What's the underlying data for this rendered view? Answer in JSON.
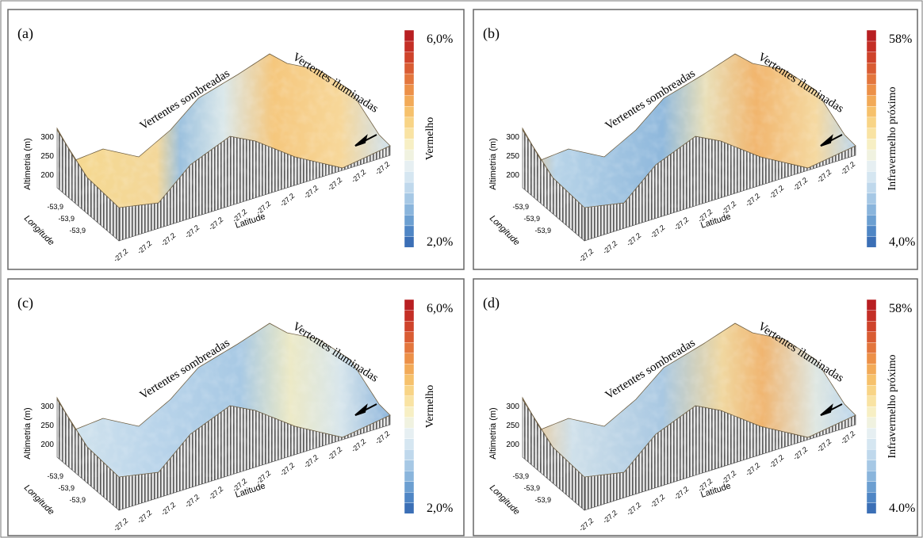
{
  "panels": [
    {
      "label": "(a)",
      "annotations": [
        "Vertentes sombreadas",
        "Vertentes iluminadas"
      ],
      "y_axis_label": "Altimetria (m)",
      "y_ticks": [
        "300",
        "250",
        "200"
      ],
      "longitude_label": "Longitude",
      "longitude_ticks": [
        "-53,9",
        "-53,9",
        "-53,9"
      ],
      "latitude_label": "Latitude",
      "latitude_ticks": [
        "-27,2",
        "-27,2",
        "-27,2",
        "-27,2",
        "-27,2",
        "-27,2",
        "-27,2",
        "-27,2",
        "-27,2",
        "-27,2",
        "-27,2",
        "-27,2"
      ],
      "colorbar": {
        "title": "Vermelho",
        "max": "6,0%",
        "min": "2,0%"
      }
    },
    {
      "label": "(b)",
      "annotations": [
        "Vertentes sombreadas",
        "Vertentes iluminadas"
      ],
      "y_axis_label": "Altimetria (m)",
      "y_ticks": [
        "300",
        "250",
        "200"
      ],
      "longitude_label": "Longitude",
      "longitude_ticks": [
        "-53,9",
        "-53,9",
        "-53,9"
      ],
      "latitude_label": "Latitude",
      "latitude_ticks": [
        "-27,2",
        "-27,2",
        "-27,2",
        "-27,2",
        "-27,2",
        "-27,2",
        "-27,2",
        "-27,2",
        "-27,2",
        "-27,2",
        "-27,2",
        "-27,2"
      ],
      "colorbar": {
        "title": "Infravermelho próximo",
        "max": "58%",
        "min": "4,0%"
      }
    },
    {
      "label": "(c)",
      "annotations": [
        "Vertentes sombreadas",
        "Vertentes iluminadas"
      ],
      "y_axis_label": "Altimetria (m)",
      "y_ticks": [
        "300",
        "250",
        "200"
      ],
      "longitude_label": "Longitude",
      "longitude_ticks": [
        "-53,9",
        "-53,9",
        "-53,9"
      ],
      "latitude_label": "Latitude",
      "latitude_ticks": [
        "-27,2",
        "-27,2",
        "-27,2",
        "-27,2",
        "-27,2",
        "-27,2",
        "-27,2",
        "-27,2",
        "-27,2",
        "-27,2",
        "-27,2",
        "-27,2"
      ],
      "colorbar": {
        "title": "Vermelho",
        "max": "6,0%",
        "min": "2,0%"
      }
    },
    {
      "label": "(d)",
      "annotations": [
        "Vertentes sombreadas",
        "Vertentes iluminadas"
      ],
      "y_axis_label": "Altimetria (m)",
      "y_ticks": [
        "300",
        "250",
        "200"
      ],
      "longitude_label": "Longitude",
      "longitude_ticks": [
        "-53,9",
        "-53,9",
        "-53,9"
      ],
      "latitude_label": "Latitude",
      "latitude_ticks": [
        "-27,2",
        "-27,2",
        "-27,2",
        "-27,2",
        "-27,2",
        "-27,2",
        "-27,2",
        "-27,2",
        "-27,2",
        "-27,2",
        "-27,2",
        "-27,2"
      ],
      "colorbar": {
        "title": "Infravermelho próximo",
        "max": "58%",
        "min": "4.0%"
      }
    }
  ]
}
